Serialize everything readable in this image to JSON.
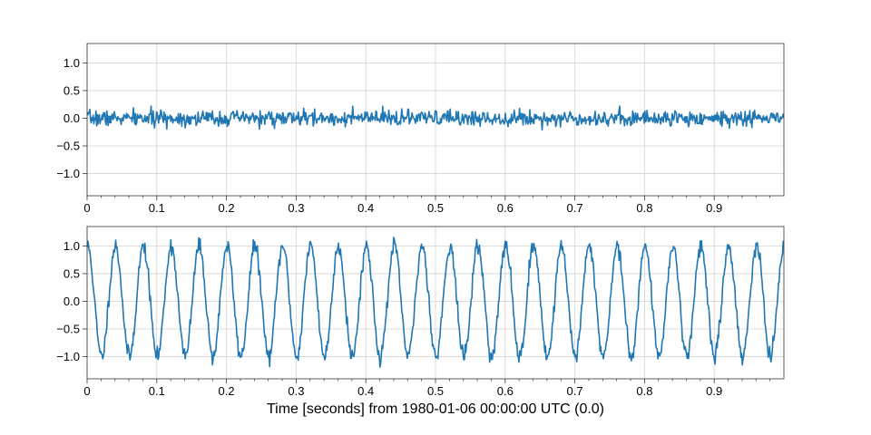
{
  "figure": {
    "xlabel": "Time [seconds] from 1980-01-06 00:00:00 UTC (0.0)"
  },
  "colors": {
    "line": "#1f77b4",
    "grid": "#d3d3d3",
    "axes": "#333333",
    "background": "#ffffff"
  },
  "chart_data": [
    {
      "type": "line",
      "series": [
        {
          "generator": "noise",
          "amplitude": 0.07,
          "seed": 7
        }
      ],
      "xlim": [
        0,
        1.0
      ],
      "ylim": [
        -1.4,
        1.35
      ],
      "x_ticks": [
        0,
        0.1,
        0.2,
        0.3,
        0.4,
        0.5,
        0.6,
        0.7,
        0.8,
        0.9
      ],
      "x_tick_labels": [
        "0",
        "0.1",
        "0.2",
        "0.3",
        "0.4",
        "0.5",
        "0.6",
        "0.7",
        "0.8",
        "0.9"
      ],
      "y_ticks": [
        -1.0,
        -0.5,
        0.0,
        0.5,
        1.0
      ],
      "y_tick_labels": [
        "−1.0",
        "−0.5",
        "0.0",
        "0.5",
        "1.0"
      ],
      "grid": true
    },
    {
      "type": "line",
      "series": [
        {
          "generator": "sine-plus-noise",
          "frequency_hz": 25,
          "amplitude": 1.0,
          "phase": 1.45,
          "noise_amplitude": 0.07,
          "seed": 11
        }
      ],
      "xlim": [
        0,
        1.0
      ],
      "ylim": [
        -1.4,
        1.35
      ],
      "x_ticks": [
        0,
        0.1,
        0.2,
        0.3,
        0.4,
        0.5,
        0.6,
        0.7,
        0.8,
        0.9
      ],
      "x_tick_labels": [
        "0",
        "0.1",
        "0.2",
        "0.3",
        "0.4",
        "0.5",
        "0.6",
        "0.7",
        "0.8",
        "0.9"
      ],
      "y_ticks": [
        -1.0,
        -0.5,
        0.0,
        0.5,
        1.0
      ],
      "y_tick_labels": [
        "−1.0",
        "−0.5",
        "0.0",
        "0.5",
        "1.0"
      ],
      "grid": true
    }
  ]
}
